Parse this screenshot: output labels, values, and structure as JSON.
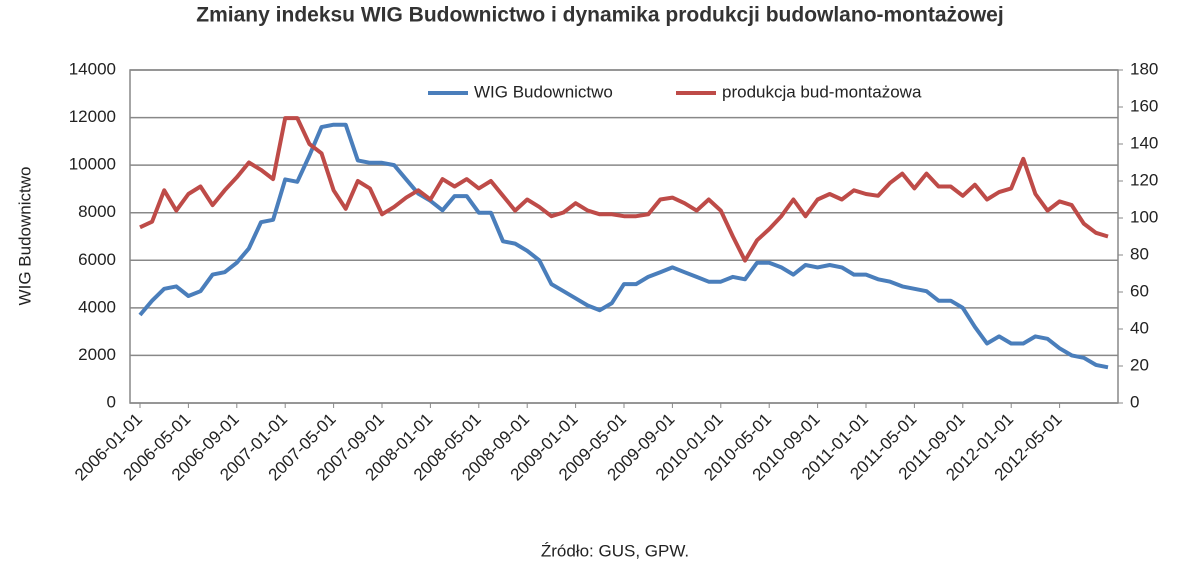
{
  "chart_data": {
    "type": "line",
    "title": "Zmiany indeksu WIG Budownictwo i dynamika produkcji budowlano-montażowej",
    "y_label": "WIG Budownictwo",
    "source": "Źródło: GUS, GPW.",
    "categories": [
      "2006-01-01",
      null,
      null,
      null,
      "2006-05-01",
      null,
      null,
      null,
      "2006-09-01",
      null,
      null,
      null,
      "2007-01-01",
      null,
      null,
      null,
      "2007-05-01",
      null,
      null,
      null,
      "2007-09-01",
      null,
      null,
      null,
      "2008-01-01",
      null,
      null,
      null,
      "2008-05-01",
      null,
      null,
      null,
      "2008-09-01",
      null,
      null,
      null,
      "2009-01-01",
      null,
      null,
      null,
      "2009-05-01",
      null,
      null,
      null,
      "2009-09-01",
      null,
      null,
      null,
      "2010-01-01",
      null,
      null,
      null,
      "2010-05-01",
      null,
      null,
      null,
      "2010-09-01",
      null,
      null,
      null,
      "2011-01-01",
      null,
      null,
      null,
      "2011-05-01",
      null,
      null,
      null,
      "2011-09-01",
      null,
      null,
      null,
      "2012-01-01",
      null,
      null,
      null,
      "2012-05-01",
      null,
      null,
      null,
      null
    ],
    "series": [
      {
        "name": "WIG Budownictwo",
        "color": "#4a7ebb",
        "axis": "y",
        "values": [
          3700,
          4300,
          4800,
          4900,
          4500,
          4700,
          5400,
          5500,
          5900,
          6500,
          7600,
          7700,
          9400,
          9300,
          10400,
          11600,
          11700,
          11700,
          10200,
          10100,
          10100,
          10000,
          9400,
          8800,
          8500,
          8100,
          8700,
          8700,
          8000,
          8000,
          6800,
          6700,
          6400,
          6000,
          5000,
          4700,
          4400,
          4100,
          3900,
          4200,
          5000,
          5000,
          5300,
          5500,
          5700,
          5500,
          5300,
          5100,
          5100,
          5300,
          5200,
          5900,
          5900,
          5700,
          5400,
          5800,
          5700,
          5800,
          5700,
          5400,
          5400,
          5200,
          5100,
          4900,
          4800,
          4700,
          4300,
          4300,
          4000,
          3200,
          2500,
          2800,
          2500,
          2500,
          2800,
          2700,
          2300,
          2000,
          1900,
          1600,
          1500
        ]
      },
      {
        "name": "produkcja bud-montażowa",
        "color": "#be4b48",
        "axis": "y2",
        "values": [
          95,
          98,
          115,
          104,
          113,
          117,
          107,
          115,
          122,
          130,
          126,
          121,
          154,
          154,
          140,
          135,
          115,
          105,
          120,
          116,
          102,
          106,
          111,
          115,
          110,
          121,
          117,
          121,
          116,
          120,
          112,
          104,
          110,
          106,
          101,
          103,
          108,
          104,
          102,
          102,
          101,
          101,
          102,
          110,
          111,
          108,
          104,
          110,
          104,
          90,
          77,
          88,
          94,
          101,
          110,
          101,
          110,
          113,
          110,
          115,
          113,
          112,
          119,
          124,
          116,
          124,
          117,
          117,
          112,
          118,
          110,
          114,
          116,
          132,
          113,
          104,
          109,
          107,
          97,
          92,
          90
        ]
      }
    ],
    "ylim": [
      0,
      14000
    ],
    "yticks": [
      0,
      2000,
      4000,
      6000,
      8000,
      10000,
      12000,
      14000
    ],
    "y2lim": [
      0,
      180
    ],
    "y2ticks": [
      0,
      20,
      40,
      60,
      80,
      100,
      120,
      140,
      160,
      180
    ],
    "grid": true,
    "legend": "top"
  }
}
